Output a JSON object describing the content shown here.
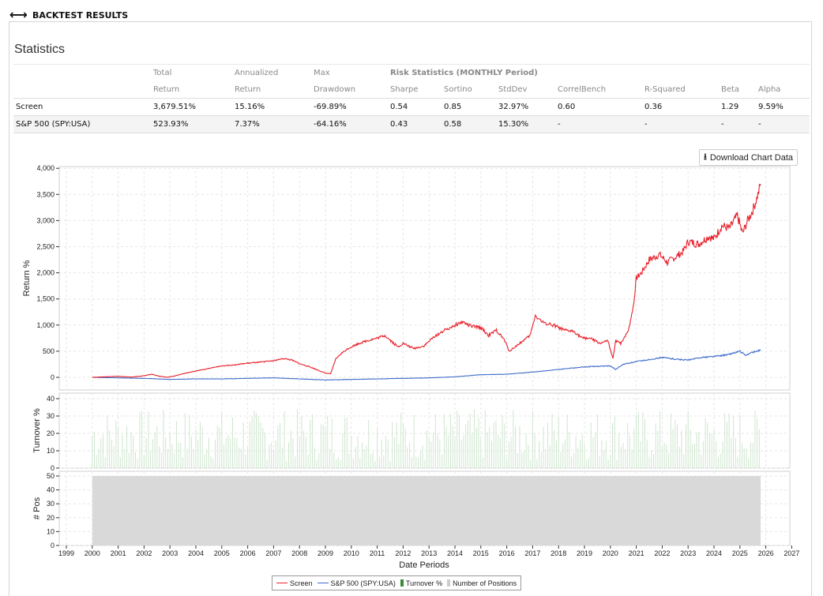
{
  "header": {
    "title": "BACKTEST RESULTS",
    "icon": "horizontal-arrows-icon"
  },
  "statistics": {
    "title": "Statistics",
    "risk_header": "Risk Statistics (MONTHLY Period)",
    "columns": [
      {
        "top": "Total",
        "bottom": "Return"
      },
      {
        "top": "Annualized",
        "bottom": "Return"
      },
      {
        "top": "Max",
        "bottom": "Drawdown"
      },
      {
        "top": "",
        "bottom": "Sharpe"
      },
      {
        "top": "",
        "bottom": "Sortino"
      },
      {
        "top": "",
        "bottom": "StdDev"
      },
      {
        "top": "",
        "bottom": "CorrelBench"
      },
      {
        "top": "",
        "bottom": "R-Squared"
      },
      {
        "top": "",
        "bottom": "Beta"
      },
      {
        "top": "",
        "bottom": "Alpha"
      }
    ],
    "rows": [
      {
        "name": "Screen",
        "cells": [
          "3,679.51%",
          "15.16%",
          "-69.89%",
          "0.54",
          "0.85",
          "32.97%",
          "0.60",
          "0.36",
          "1.29",
          "9.59%"
        ]
      },
      {
        "name": "S&P 500 (SPY:USA)",
        "cells": [
          "523.93%",
          "7.37%",
          "-64.16%",
          "0.43",
          "0.58",
          "15.30%",
          "-",
          "-",
          "-",
          "-"
        ]
      }
    ]
  },
  "download_button": {
    "label": "Download Chart Data",
    "icon": "download-icon"
  },
  "legend": [
    {
      "label": "Screen",
      "color": "#e8202a",
      "kind": "line"
    },
    {
      "label": "S&P 500 (SPY:USA)",
      "color": "#3e6cc9",
      "kind": "line"
    },
    {
      "label": "Turnover %",
      "color": "#3a8a3a",
      "kind": "bar"
    },
    {
      "label": "Number of Positions",
      "color": "#cccccc",
      "kind": "bar"
    }
  ],
  "chart_data": [
    {
      "type": "line",
      "title": "",
      "xlabel": "Date Periods",
      "ylabel": "Return %",
      "ylim": [
        -250,
        4000
      ],
      "xlim": [
        1999,
        2027
      ],
      "yticks": [
        "4,000",
        "3,500",
        "3,000",
        "2,500",
        "2,000",
        "1,500",
        "1,000",
        "500",
        "0"
      ],
      "grid": true,
      "legend_position": "bottom-center",
      "series": [
        {
          "name": "Screen",
          "color": "#e8202a",
          "x": [
            2000.0,
            2000.5,
            2001.0,
            2001.5,
            2002.0,
            2002.3,
            2002.6,
            2002.9,
            2003.2,
            2003.6,
            2004.0,
            2004.5,
            2005.0,
            2005.5,
            2006.0,
            2006.5,
            2007.0,
            2007.4,
            2007.7,
            2008.0,
            2008.4,
            2008.8,
            2009.0,
            2009.2,
            2009.4,
            2009.6,
            2009.9,
            2010.3,
            2010.6,
            2011.0,
            2011.3,
            2011.8,
            2012.0,
            2012.4,
            2012.8,
            2013.2,
            2013.6,
            2014.0,
            2014.3,
            2014.6,
            2015.0,
            2015.3,
            2015.6,
            2015.9,
            2016.1,
            2016.5,
            2016.9,
            2017.1,
            2017.4,
            2017.8,
            2018.2,
            2018.6,
            2018.9,
            2019.2,
            2019.6,
            2019.9,
            2020.1,
            2020.2,
            2020.4,
            2020.7,
            2020.9,
            2021.0,
            2021.2,
            2021.5,
            2021.9,
            2022.2,
            2022.5,
            2022.8,
            2023.0,
            2023.4,
            2023.8,
            2024.0,
            2024.3,
            2024.6,
            2024.9,
            2025.1,
            2025.3,
            2025.5,
            2025.7,
            2025.8
          ],
          "y": [
            0,
            10,
            20,
            5,
            30,
            60,
            20,
            0,
            30,
            80,
            120,
            170,
            220,
            240,
            270,
            290,
            320,
            360,
            330,
            260,
            200,
            120,
            80,
            70,
            350,
            450,
            560,
            650,
            700,
            750,
            800,
            580,
            650,
            550,
            600,
            780,
            900,
            1000,
            1060,
            980,
            950,
            800,
            900,
            720,
            500,
            650,
            800,
            1180,
            1050,
            1000,
            900,
            880,
            750,
            750,
            650,
            700,
            350,
            700,
            650,
            900,
            1400,
            1900,
            2000,
            2250,
            2350,
            2200,
            2300,
            2400,
            2600,
            2550,
            2700,
            2650,
            2900,
            2850,
            3100,
            2750,
            3000,
            3200,
            3500,
            3700
          ]
        },
        {
          "name": "S&P 500 (SPY:USA)",
          "color": "#3e6cc9",
          "x": [
            2000.0,
            2001.0,
            2002.0,
            2003.0,
            2004.0,
            2005.0,
            2006.0,
            2007.0,
            2008.0,
            2009.0,
            2010.0,
            2011.0,
            2012.0,
            2013.0,
            2014.0,
            2015.0,
            2016.0,
            2017.0,
            2018.0,
            2019.0,
            2020.0,
            2020.2,
            2020.5,
            2021.0,
            2022.0,
            2022.5,
            2023.0,
            2023.5,
            2024.0,
            2024.5,
            2025.0,
            2025.2,
            2025.5,
            2025.8
          ],
          "y": [
            0,
            -10,
            -20,
            -40,
            -30,
            -30,
            -20,
            -10,
            -30,
            -50,
            -40,
            -30,
            -20,
            -10,
            10,
            50,
            60,
            100,
            150,
            200,
            220,
            150,
            250,
            300,
            380,
            350,
            330,
            380,
            400,
            430,
            500,
            420,
            480,
            520
          ]
        }
      ]
    },
    {
      "type": "bar",
      "title": "",
      "ylabel": "Turnover %",
      "ylim": [
        0,
        40
      ],
      "yticks": [
        "40",
        "30",
        "20",
        "10",
        "0"
      ],
      "series": [
        {
          "name": "Turnover %",
          "color": "#3a8a3a",
          "typical_values": [
            4,
            34
          ]
        }
      ]
    },
    {
      "type": "area",
      "title": "",
      "ylabel": "# Pos",
      "ylim": [
        0,
        50
      ],
      "yticks": [
        "50",
        "40",
        "30",
        "20",
        "10",
        "0"
      ],
      "series": [
        {
          "name": "Number of Positions",
          "color": "#cccccc",
          "x": [
            2000.0,
            2025.8
          ],
          "y": [
            50,
            50
          ]
        }
      ]
    }
  ],
  "xticks": [
    "1999",
    "2000",
    "2001",
    "2002",
    "2003",
    "2004",
    "2005",
    "2006",
    "2007",
    "2008",
    "2009",
    "2010",
    "2011",
    "2012",
    "2013",
    "2014",
    "2015",
    "2016",
    "2017",
    "2018",
    "2019",
    "2020",
    "2021",
    "2022",
    "2023",
    "2024",
    "2025",
    "2026",
    "2027"
  ]
}
